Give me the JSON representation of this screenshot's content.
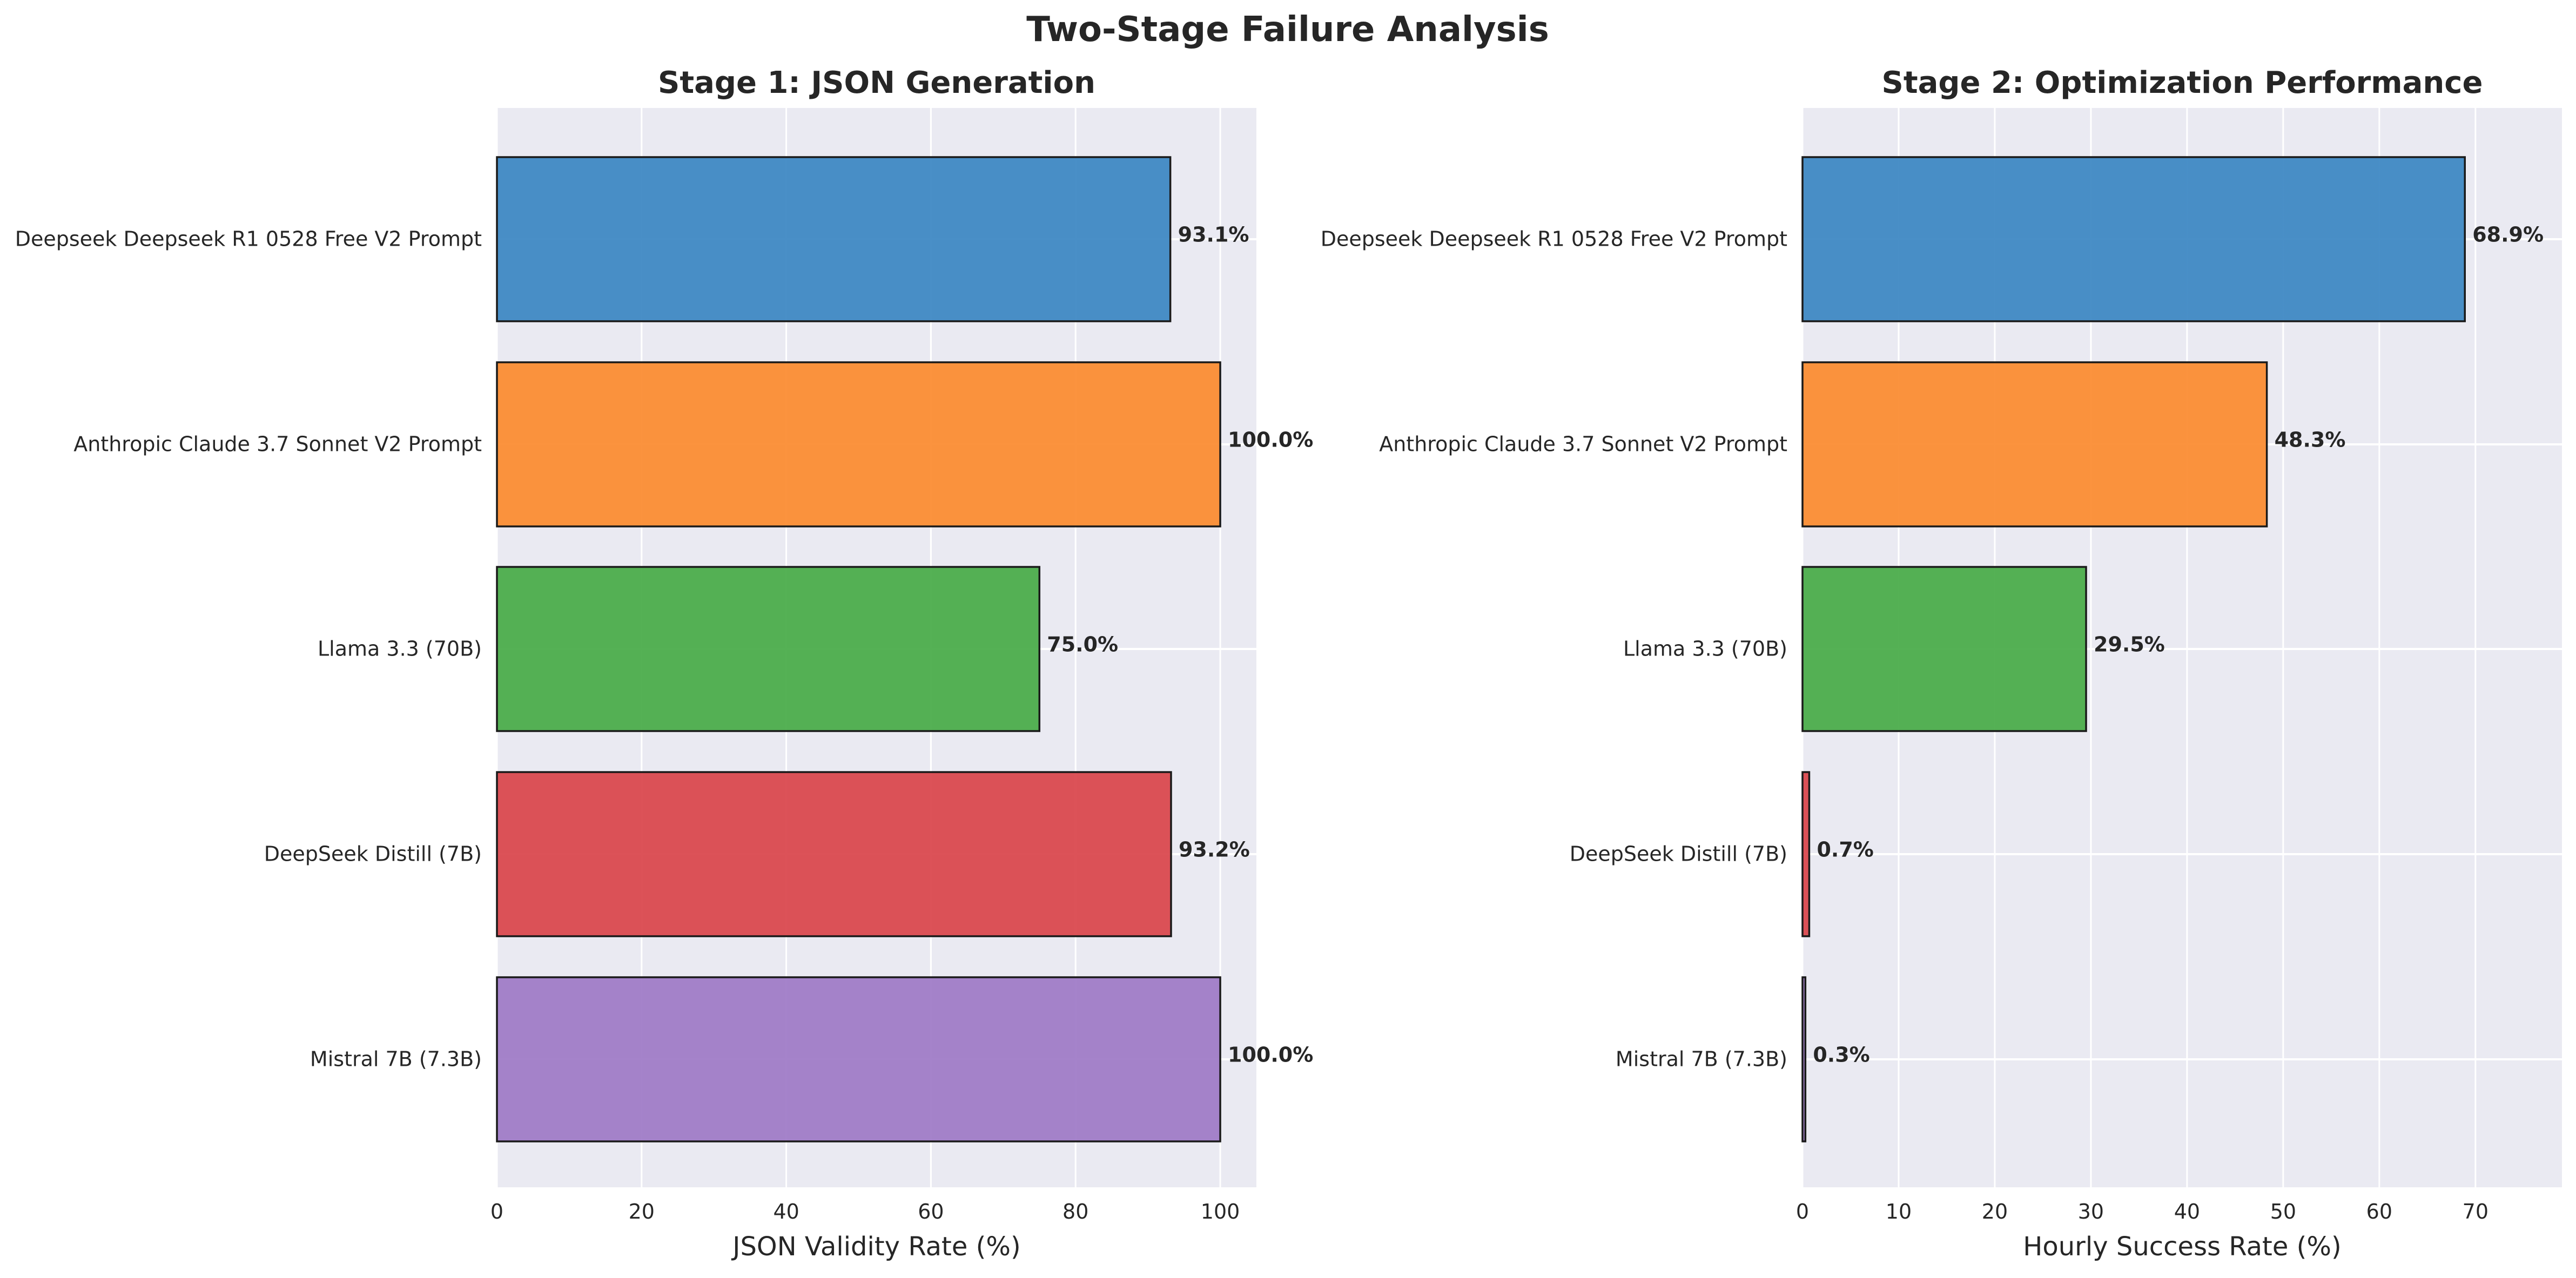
{
  "chart_data": {
    "title": "Two-Stage Failure Analysis",
    "categories": [
      "Deepseek Deepseek R1 0528 Free V2 Prompt",
      "Anthropic Claude 3.7 Sonnet V2 Prompt",
      "Llama 3.3 (70B)",
      "DeepSeek Distill (7B)",
      "Mistral 7B (7.3B)"
    ],
    "colors": [
      "#3a86c2",
      "#fb8a2e",
      "#47aa47",
      "#d9434a",
      "#9d78c6"
    ],
    "panels": [
      {
        "type": "bar",
        "orientation": "horizontal",
        "title": "Stage 1: JSON Generation",
        "xlabel": "JSON Validity Rate (%)",
        "ylabel": "",
        "xlim": [
          0,
          105
        ],
        "xticks": [
          0,
          20,
          40,
          60,
          80,
          100
        ],
        "values": [
          93.1,
          100.0,
          75.0,
          93.2,
          100.0
        ],
        "value_labels": [
          "93.1%",
          "100.0%",
          "75.0%",
          "93.2%",
          "100.0%"
        ],
        "grid": true
      },
      {
        "type": "bar",
        "orientation": "horizontal",
        "title": "Stage 2: Optimization Performance",
        "xlabel": "Hourly Success Rate (%)",
        "ylabel": "",
        "xlim": [
          0,
          79
        ],
        "xticks": [
          0,
          10,
          20,
          30,
          40,
          50,
          60,
          70
        ],
        "values": [
          68.9,
          48.3,
          29.5,
          0.7,
          0.3
        ],
        "value_labels": [
          "68.9%",
          "48.3%",
          "29.5%",
          "0.7%",
          "0.3%"
        ],
        "grid": true
      }
    ]
  }
}
